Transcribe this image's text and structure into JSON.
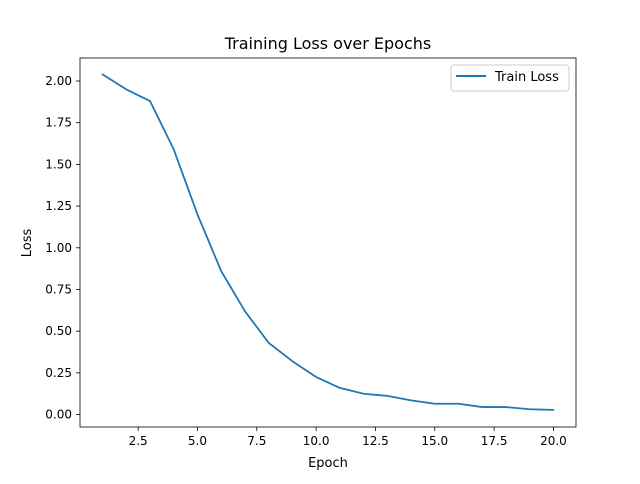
{
  "chart_data": {
    "type": "line",
    "title": "Training Loss over Epochs",
    "xlabel": "Epoch",
    "ylabel": "Loss",
    "xlim": [
      0.05,
      20.95
    ],
    "ylim": [
      -0.0745,
      2.138
    ],
    "xticks": [
      2.5,
      5.0,
      7.5,
      10.0,
      12.5,
      15.0,
      17.5,
      20.0
    ],
    "xtick_labels": [
      "2.5",
      "5.0",
      "7.5",
      "10.0",
      "12.5",
      "15.0",
      "17.5",
      "20.0"
    ],
    "yticks": [
      0.0,
      0.25,
      0.5,
      0.75,
      1.0,
      1.25,
      1.5,
      1.75,
      2.0
    ],
    "ytick_labels": [
      "0.00",
      "0.25",
      "0.50",
      "0.75",
      "1.00",
      "1.25",
      "1.50",
      "1.75",
      "2.00"
    ],
    "grid": false,
    "legend_position": "top-right",
    "series": [
      {
        "name": "Train Loss",
        "color": "#1f77b4",
        "x": [
          1,
          2,
          3,
          4,
          5,
          6,
          7,
          8,
          9,
          10,
          11,
          12,
          13,
          14,
          15,
          16,
          17,
          18,
          19,
          20
        ],
        "y": [
          2.04,
          1.95,
          1.88,
          1.59,
          1.2,
          0.86,
          0.62,
          0.43,
          0.32,
          0.225,
          0.16,
          0.125,
          0.112,
          0.085,
          0.065,
          0.065,
          0.045,
          0.045,
          0.032,
          0.028
        ]
      }
    ]
  }
}
